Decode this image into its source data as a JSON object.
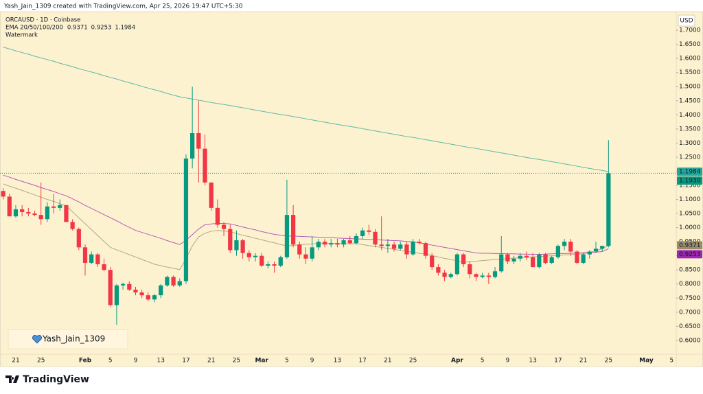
{
  "header": {
    "credit": "Yash_Jain_1309 created with TradingView.com, Apr 25, 2026 19:47 UTC+5:30",
    "symbol": "ORCAUSD · 1D · Coinbase",
    "indicator": "EMA 20/50/100/200",
    "watermark_label": "Watermark",
    "watermark": "Yash_Jain_1309",
    "currency": "USD",
    "brand": "TradingView"
  },
  "chart_data": {
    "type": "candlestick",
    "categories": [
      null,
      null,
      "21",
      null,
      null,
      null,
      "25",
      null,
      null,
      null,
      null,
      null,
      null,
      "Feb",
      null,
      null,
      null,
      "5",
      null,
      null,
      null,
      "9",
      null,
      null,
      null,
      "13",
      null,
      null,
      null,
      "17",
      null,
      null,
      null,
      "21",
      null,
      null,
      null,
      "25",
      null,
      null,
      null,
      "Mar",
      null,
      null,
      null,
      "5",
      null,
      null,
      null,
      "9",
      null,
      null,
      null,
      "13",
      null,
      null,
      null,
      "17",
      null,
      null,
      null,
      "21",
      null,
      null,
      null,
      "25",
      null,
      null,
      null,
      null,
      null,
      null,
      "Apr",
      null,
      null,
      null,
      "5",
      null,
      null,
      null,
      "9",
      null,
      null,
      null,
      "13",
      null,
      null,
      null,
      "17",
      null,
      null,
      null,
      "21",
      null,
      null,
      null,
      "25",
      null,
      null,
      null,
      null,
      null,
      "May",
      null,
      null,
      null,
      "5",
      null
    ],
    "candles": [
      [
        1.13,
        1.14,
        1.1,
        1.11
      ],
      [
        1.11,
        1.12,
        1.04,
        1.04
      ],
      [
        1.04,
        1.08,
        1.035,
        1.065
      ],
      [
        1.065,
        1.08,
        1.04,
        1.055
      ],
      [
        1.055,
        1.07,
        1.04,
        1.05
      ],
      [
        1.05,
        1.06,
        1.04,
        1.045
      ],
      [
        1.045,
        1.16,
        1.01,
        1.03
      ],
      [
        1.03,
        1.09,
        1.02,
        1.075
      ],
      [
        1.075,
        1.12,
        1.05,
        1.07
      ],
      [
        1.07,
        1.1,
        1.06,
        1.08
      ],
      [
        1.08,
        1.08,
        1.02,
        1.02
      ],
      [
        1.02,
        1.03,
        0.99,
        0.995
      ],
      [
        0.995,
        1.0,
        0.92,
        0.93
      ],
      [
        0.93,
        0.94,
        0.83,
        0.875
      ],
      [
        0.875,
        0.915,
        0.87,
        0.905
      ],
      [
        0.905,
        0.91,
        0.86,
        0.87
      ],
      [
        0.87,
        0.89,
        0.845,
        0.85
      ],
      [
        0.85,
        0.86,
        0.72,
        0.725
      ],
      [
        0.725,
        0.8,
        0.655,
        0.795
      ],
      [
        0.795,
        0.805,
        0.78,
        0.8
      ],
      [
        0.8,
        0.81,
        0.775,
        0.78
      ],
      [
        0.78,
        0.79,
        0.76,
        0.77
      ],
      [
        0.77,
        0.78,
        0.75,
        0.76
      ],
      [
        0.76,
        0.77,
        0.74,
        0.745
      ],
      [
        0.745,
        0.765,
        0.735,
        0.76
      ],
      [
        0.76,
        0.8,
        0.75,
        0.795
      ],
      [
        0.795,
        0.83,
        0.79,
        0.825
      ],
      [
        0.825,
        0.83,
        0.79,
        0.795
      ],
      [
        0.795,
        0.82,
        0.79,
        0.81
      ],
      [
        0.81,
        1.26,
        0.8,
        1.245
      ],
      [
        1.245,
        1.5,
        1.21,
        1.335
      ],
      [
        1.335,
        1.45,
        1.16,
        1.28
      ],
      [
        1.28,
        1.33,
        1.15,
        1.16
      ],
      [
        1.16,
        1.16,
        1.06,
        1.07
      ],
      [
        1.07,
        1.1,
        1.0,
        1.01
      ],
      [
        1.01,
        1.02,
        0.97,
        0.995
      ],
      [
        0.995,
        1.01,
        0.91,
        0.92
      ],
      [
        0.92,
        0.99,
        0.9,
        0.955
      ],
      [
        0.955,
        0.96,
        0.89,
        0.91
      ],
      [
        0.91,
        0.92,
        0.88,
        0.895
      ],
      [
        0.895,
        0.91,
        0.88,
        0.9
      ],
      [
        0.9,
        0.91,
        0.86,
        0.865
      ],
      [
        0.865,
        0.88,
        0.855,
        0.87
      ],
      [
        0.87,
        0.88,
        0.84,
        0.865
      ],
      [
        0.865,
        0.9,
        0.86,
        0.895
      ],
      [
        0.895,
        1.17,
        0.89,
        1.045
      ],
      [
        1.045,
        1.08,
        0.93,
        0.94
      ],
      [
        0.94,
        0.95,
        0.89,
        0.905
      ],
      [
        0.905,
        0.93,
        0.87,
        0.89
      ],
      [
        0.89,
        0.97,
        0.88,
        0.93
      ],
      [
        0.93,
        0.96,
        0.92,
        0.95
      ],
      [
        0.95,
        0.96,
        0.93,
        0.94
      ],
      [
        0.94,
        0.96,
        0.93,
        0.945
      ],
      [
        0.945,
        0.96,
        0.93,
        0.94
      ],
      [
        0.94,
        0.96,
        0.93,
        0.955
      ],
      [
        0.955,
        0.97,
        0.94,
        0.945
      ],
      [
        0.945,
        0.98,
        0.94,
        0.97
      ],
      [
        0.97,
        1.0,
        0.96,
        0.99
      ],
      [
        0.99,
        1.01,
        0.975,
        0.985
      ],
      [
        0.985,
        0.995,
        0.93,
        0.94
      ],
      [
        0.94,
        1.04,
        0.92,
        0.935
      ],
      [
        0.935,
        0.96,
        0.91,
        0.94
      ],
      [
        0.94,
        0.95,
        0.915,
        0.925
      ],
      [
        0.925,
        0.95,
        0.92,
        0.94
      ],
      [
        0.94,
        0.95,
        0.89,
        0.905
      ],
      [
        0.905,
        0.96,
        0.9,
        0.95
      ],
      [
        0.95,
        0.96,
        0.94,
        0.945
      ],
      [
        0.945,
        0.95,
        0.89,
        0.9
      ],
      [
        0.9,
        0.91,
        0.85,
        0.86
      ],
      [
        0.86,
        0.87,
        0.83,
        0.84
      ],
      [
        0.84,
        0.85,
        0.81,
        0.825
      ],
      [
        0.825,
        0.84,
        0.82,
        0.835
      ],
      [
        0.835,
        0.91,
        0.83,
        0.905
      ],
      [
        0.905,
        0.91,
        0.86,
        0.87
      ],
      [
        0.87,
        0.88,
        0.82,
        0.835
      ],
      [
        0.835,
        0.84,
        0.81,
        0.825
      ],
      [
        0.825,
        0.84,
        0.82,
        0.83
      ],
      [
        0.83,
        0.84,
        0.8,
        0.825
      ],
      [
        0.825,
        0.86,
        0.82,
        0.845
      ],
      [
        0.845,
        0.97,
        0.84,
        0.905
      ],
      [
        0.905,
        0.91,
        0.87,
        0.88
      ],
      [
        0.88,
        0.9,
        0.87,
        0.89
      ],
      [
        0.89,
        0.91,
        0.88,
        0.9
      ],
      [
        0.9,
        0.915,
        0.885,
        0.895
      ],
      [
        0.895,
        0.91,
        0.86,
        0.86
      ],
      [
        0.86,
        0.91,
        0.855,
        0.905
      ],
      [
        0.905,
        0.91,
        0.87,
        0.875
      ],
      [
        0.875,
        0.9,
        0.87,
        0.895
      ],
      [
        0.895,
        0.94,
        0.89,
        0.935
      ],
      [
        0.935,
        0.96,
        0.92,
        0.95
      ],
      [
        0.95,
        0.96,
        0.9,
        0.915
      ],
      [
        0.915,
        0.92,
        0.87,
        0.875
      ],
      [
        0.875,
        0.91,
        0.87,
        0.905
      ],
      [
        0.905,
        0.92,
        0.89,
        0.915
      ],
      [
        0.915,
        0.95,
        0.91,
        0.925
      ],
      [
        0.925,
        0.935,
        0.915,
        0.935
      ],
      [
        0.935,
        1.31,
        0.93,
        1.193
      ],
      null,
      null,
      null,
      null,
      null,
      null,
      null,
      null,
      null,
      null,
      null
    ],
    "up_color": "#089981",
    "down_color": "#f23645",
    "series": [
      {
        "color": "#9a8c6a",
        "values": [
          1.155,
          1.147,
          1.14,
          1.132,
          1.124,
          1.116,
          1.108,
          1.1,
          1.093,
          1.085,
          1.077,
          1.056,
          1.035,
          1.014,
          0.993,
          0.972,
          0.951,
          0.93,
          0.921,
          0.913,
          0.904,
          0.896,
          0.887,
          0.879,
          0.87,
          0.865,
          0.86,
          0.856,
          0.851,
          0.89,
          0.935,
          0.967,
          0.98,
          0.987,
          0.99,
          0.988,
          0.985,
          0.979,
          0.973,
          0.968,
          0.962,
          0.957,
          0.951,
          0.946,
          0.94,
          0.935,
          0.937,
          0.939,
          0.941,
          0.942,
          0.943,
          0.944,
          0.944,
          0.944,
          0.943,
          0.943,
          0.943,
          0.94,
          0.936,
          0.933,
          0.93,
          0.926,
          0.923,
          0.919,
          0.916,
          0.913,
          0.909,
          0.906,
          0.901,
          0.896,
          0.891,
          0.887,
          0.882,
          0.877,
          0.879,
          0.881,
          0.883,
          0.885,
          0.887,
          0.888,
          0.89,
          0.892,
          0.893,
          0.894,
          0.896,
          0.897,
          0.899,
          0.9,
          0.901,
          0.903,
          0.904,
          0.906,
          0.907,
          0.912,
          0.918,
          0.925,
          0.9371,
          null,
          null,
          null,
          null,
          null,
          null,
          null,
          null,
          null,
          null,
          null
        ]
      },
      {
        "color": "#9c27b0",
        "values": [
          1.186,
          1.179,
          1.171,
          1.164,
          1.157,
          1.15,
          1.142,
          1.135,
          1.128,
          1.12,
          1.113,
          1.102,
          1.091,
          1.079,
          1.068,
          1.057,
          1.046,
          1.035,
          1.024,
          1.012,
          1.001,
          0.99,
          0.983,
          0.976,
          0.969,
          0.962,
          0.954,
          0.947,
          0.94,
          0.955,
          0.975,
          0.995,
          1.01,
          1.013,
          1.015,
          1.015,
          1.013,
          1.008,
          1.002,
          0.997,
          0.992,
          0.986,
          0.981,
          0.976,
          0.973,
          0.97,
          0.97,
          0.969,
          0.968,
          0.967,
          0.966,
          0.965,
          0.964,
          0.963,
          0.962,
          0.961,
          0.96,
          0.959,
          0.958,
          0.957,
          0.956,
          0.955,
          0.954,
          0.953,
          0.951,
          0.95,
          0.946,
          0.942,
          0.938,
          0.934,
          0.93,
          0.926,
          0.922,
          0.918,
          0.914,
          0.91,
          0.909,
          0.909,
          0.908,
          0.908,
          0.907,
          0.907,
          0.906,
          0.906,
          0.905,
          0.905,
          0.906,
          0.907,
          0.908,
          0.908,
          0.909,
          0.91,
          0.911,
          0.912,
          0.913,
          0.915,
          0.9253,
          null,
          null,
          null,
          null,
          null,
          null,
          null,
          null,
          null,
          null,
          null
        ]
      },
      {
        "color": "#26a69a",
        "values": [
          1.64,
          1.634,
          1.627,
          1.621,
          1.615,
          1.608,
          1.602,
          1.596,
          1.59,
          1.583,
          1.577,
          1.571,
          1.564,
          1.558,
          1.552,
          1.546,
          1.539,
          1.533,
          1.527,
          1.52,
          1.514,
          1.508,
          1.501,
          1.495,
          1.489,
          1.483,
          1.476,
          1.47,
          1.464,
          1.46,
          1.456,
          1.452,
          1.448,
          1.444,
          1.44,
          1.437,
          1.433,
          1.429,
          1.425,
          1.421,
          1.417,
          1.413,
          1.409,
          1.405,
          1.401,
          1.398,
          1.394,
          1.39,
          1.386,
          1.382,
          1.378,
          1.374,
          1.37,
          1.366,
          1.362,
          1.359,
          1.355,
          1.351,
          1.347,
          1.343,
          1.339,
          1.335,
          1.331,
          1.327,
          1.323,
          1.32,
          1.316,
          1.312,
          1.308,
          1.304,
          1.3,
          1.296,
          1.292,
          1.288,
          1.284,
          1.281,
          1.277,
          1.273,
          1.269,
          1.265,
          1.261,
          1.257,
          1.253,
          1.249,
          1.245,
          1.242,
          1.238,
          1.234,
          1.23,
          1.226,
          1.222,
          1.218,
          1.214,
          1.21,
          1.206,
          1.203,
          1.1984,
          null,
          null,
          null,
          null,
          null,
          null,
          null,
          null,
          null,
          null,
          null
        ]
      }
    ],
    "last_price": {
      "value": 1.193,
      "label": "1.1930"
    },
    "ylim": [
      0.551,
      1.766
    ],
    "yticks": [
      {
        "value": 0.6,
        "label": "0.6000"
      },
      {
        "value": 0.65,
        "label": "0.6500"
      },
      {
        "value": 0.7,
        "label": "0.7000"
      },
      {
        "value": 0.75,
        "label": "0.7500"
      },
      {
        "value": 0.8,
        "label": "0.8000"
      },
      {
        "value": 0.85,
        "label": "0.8500"
      },
      {
        "value": 0.9,
        "label": "0.9000"
      },
      {
        "value": 0.95,
        "label": "0.9500"
      },
      {
        "value": 1.0,
        "label": "1.0000"
      },
      {
        "value": 1.05,
        "label": "1.0500"
      },
      {
        "value": 1.1,
        "label": "1.1000"
      },
      {
        "value": 1.15,
        "label": "1.1500"
      },
      {
        "value": 1.2,
        "label": "1.2000"
      },
      {
        "value": 1.25,
        "label": "1.2500"
      },
      {
        "value": 1.3,
        "label": "1.3000"
      },
      {
        "value": 1.35,
        "label": "1.3500"
      },
      {
        "value": 1.4,
        "label": "1.4000"
      },
      {
        "value": 1.45,
        "label": "1.4500"
      },
      {
        "value": 1.5,
        "label": "1.5000"
      },
      {
        "value": 1.55,
        "label": "1.5500"
      },
      {
        "value": 1.6,
        "label": "1.6000"
      },
      {
        "value": 1.65,
        "label": "1.6500"
      },
      {
        "value": 1.7,
        "label": "1.7000"
      }
    ]
  }
}
